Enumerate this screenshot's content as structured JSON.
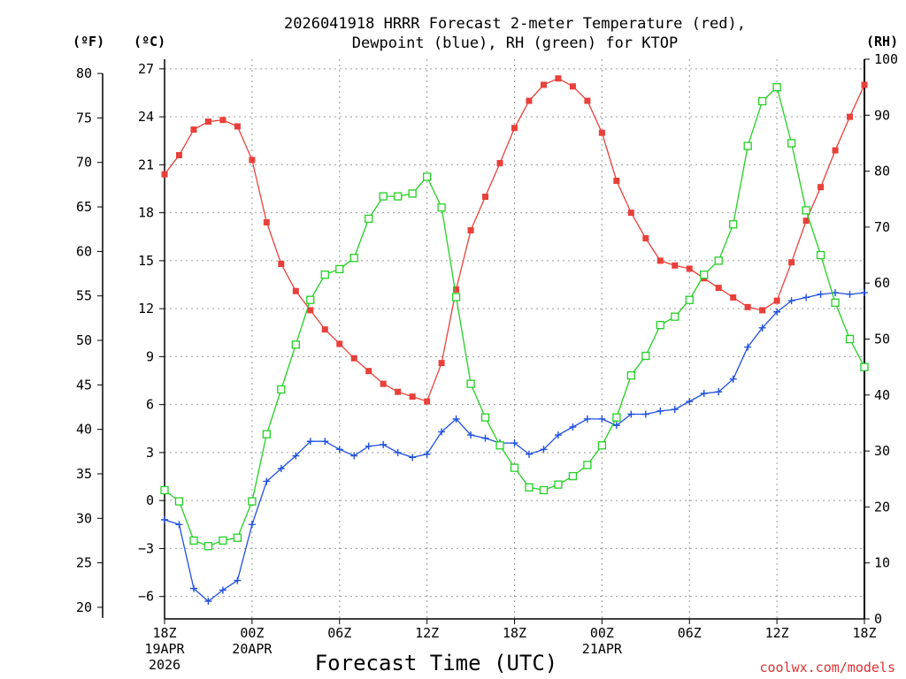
{
  "chart_data": {
    "type": "line",
    "title_line1": "2026041918 HRRR Forecast 2-meter Temperature (red),",
    "title_line2": "Dewpoint (blue), RH (green) for KTOP",
    "xlabel": "Forecast Time (UTC)",
    "credit": "coolwx.com/models",
    "units": {
      "f": "(ºF)",
      "c": "(ºC)",
      "rh": "(RH)"
    },
    "x_range_hours": [
      0,
      48
    ],
    "x_ticks": [
      {
        "h": 0,
        "lines": [
          "18Z",
          "19APR",
          "2026"
        ]
      },
      {
        "h": 6,
        "lines": [
          "00Z",
          "20APR"
        ]
      },
      {
        "h": 12,
        "lines": [
          "06Z"
        ]
      },
      {
        "h": 18,
        "lines": [
          "12Z"
        ]
      },
      {
        "h": 24,
        "lines": [
          "18Z"
        ]
      },
      {
        "h": 30,
        "lines": [
          "00Z",
          "21APR"
        ]
      },
      {
        "h": 36,
        "lines": [
          "06Z"
        ]
      },
      {
        "h": 42,
        "lines": [
          "12Z"
        ]
      },
      {
        "h": 48,
        "lines": [
          "18Z"
        ]
      }
    ],
    "c_axis": {
      "range": [
        -7.4,
        27.6
      ],
      "ticks": [
        "27",
        "24",
        "21",
        "18",
        "15",
        "12",
        "9",
        "6",
        "3",
        "0",
        "−3",
        "−6"
      ]
    },
    "f_axis": {
      "range": [
        18.7,
        81.6
      ],
      "ticks": [
        "80",
        "75",
        "70",
        "65",
        "60",
        "55",
        "50",
        "45",
        "40",
        "35",
        "30",
        "25",
        "20"
      ]
    },
    "rh_axis": {
      "range": [
        0,
        100
      ],
      "ticks": [
        "100",
        "90",
        "80",
        "70",
        "60",
        "50",
        "40",
        "30",
        "20",
        "10",
        "0"
      ]
    },
    "series": [
      {
        "name": "Temperature",
        "unit": "C",
        "color": "#e8403a",
        "marker": "filled-square",
        "values": [
          20.4,
          21.6,
          23.2,
          23.7,
          23.8,
          23.4,
          21.3,
          17.4,
          14.8,
          13.1,
          11.9,
          10.7,
          9.8,
          8.9,
          8.1,
          7.3,
          6.8,
          6.5,
          6.2,
          8.6,
          13.2,
          16.9,
          19.0,
          21.1,
          23.3,
          25.0,
          26.0,
          26.4,
          25.9,
          25.0,
          23.0,
          20.0,
          18.0,
          16.4,
          15.0,
          14.7,
          14.5,
          13.9,
          13.3,
          12.7,
          12.1,
          11.9,
          12.5,
          14.9,
          17.5,
          19.6,
          21.9,
          24.0,
          26.0
        ]
      },
      {
        "name": "Dewpoint",
        "unit": "C",
        "color": "#2050e0",
        "marker": "plus",
        "values": [
          -1.2,
          -1.5,
          -5.5,
          -6.3,
          -5.6,
          -5.0,
          -1.5,
          1.2,
          2.0,
          2.8,
          3.7,
          3.7,
          3.2,
          2.8,
          3.4,
          3.5,
          3.0,
          2.7,
          2.9,
          4.3,
          5.1,
          4.1,
          3.9,
          3.6,
          3.6,
          2.9,
          3.2,
          4.1,
          4.6,
          5.1,
          5.1,
          4.7,
          5.4,
          5.4,
          5.6,
          5.7,
          6.2,
          6.7,
          6.8,
          7.6,
          9.6,
          10.8,
          11.8,
          12.5,
          12.7,
          12.9,
          13.0,
          12.9,
          13.0
        ]
      },
      {
        "name": "RH",
        "unit": "%",
        "color": "#22d022",
        "marker": "open-square",
        "values": [
          23,
          21,
          14,
          13,
          14,
          14.5,
          21,
          33,
          41,
          49,
          57,
          61.5,
          62.5,
          64.5,
          71.5,
          75.5,
          75.5,
          76,
          79,
          73.5,
          57.5,
          42,
          36,
          31,
          27,
          23.5,
          23,
          24,
          25.5,
          27.5,
          31,
          36,
          43.5,
          47,
          52.5,
          54,
          57,
          61.5,
          64,
          70.5,
          84.5,
          92.5,
          95,
          85,
          73,
          65,
          56.5,
          50,
          45
        ]
      }
    ]
  }
}
